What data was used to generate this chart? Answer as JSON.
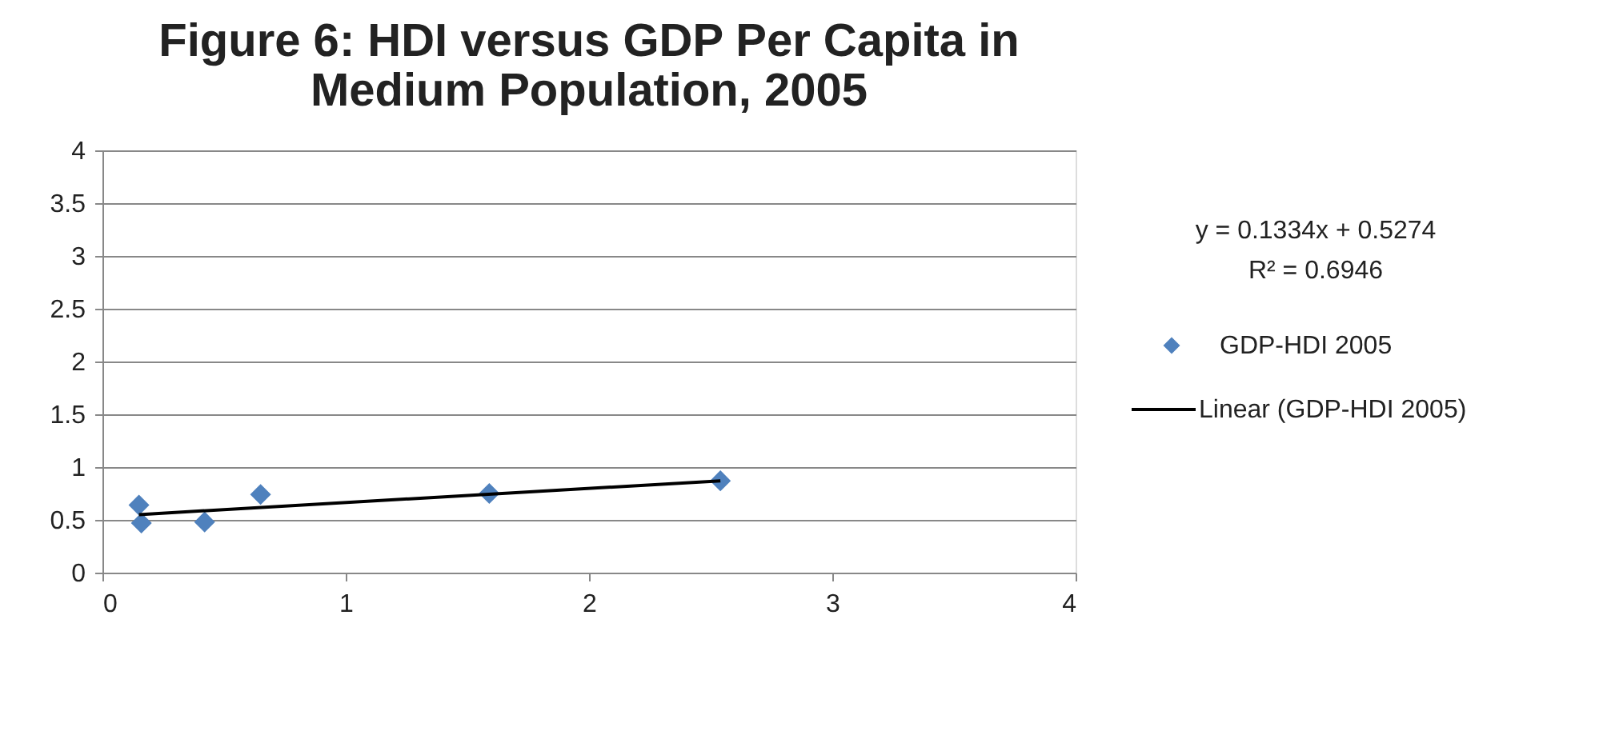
{
  "chart_data": {
    "type": "scatter",
    "title": [
      "Figure 6: HDI versus GDP Per Capita in",
      "Medium Population, 2005"
    ],
    "xlim": [
      0,
      4
    ],
    "xticks": [
      0,
      1,
      2,
      3,
      4
    ],
    "ylim": [
      0,
      4
    ],
    "yticks": [
      0,
      0.5,
      1,
      1.5,
      2,
      2.5,
      3,
      3.5,
      4
    ],
    "grid": "y",
    "legend": "right",
    "series": [
      {
        "name": "GDP-HDI 2005",
        "marker": "diamond",
        "color": "#4f81bd",
        "x": [
          0.15,
          0.16,
          0.42,
          0.65,
          1.59,
          2.54
        ],
        "values": [
          0.64,
          0.47,
          0.48,
          0.74,
          0.75,
          0.87
        ]
      },
      {
        "name": "Linear (GDP-HDI 2005)",
        "type": "line",
        "marker": "none",
        "color": "#000000",
        "x": [
          0.15,
          2.54
        ],
        "values": [
          0.55,
          0.87
        ]
      }
    ],
    "annotations": [
      "y = 0.1334x + 0.5274",
      "R² = 0.6946"
    ]
  }
}
